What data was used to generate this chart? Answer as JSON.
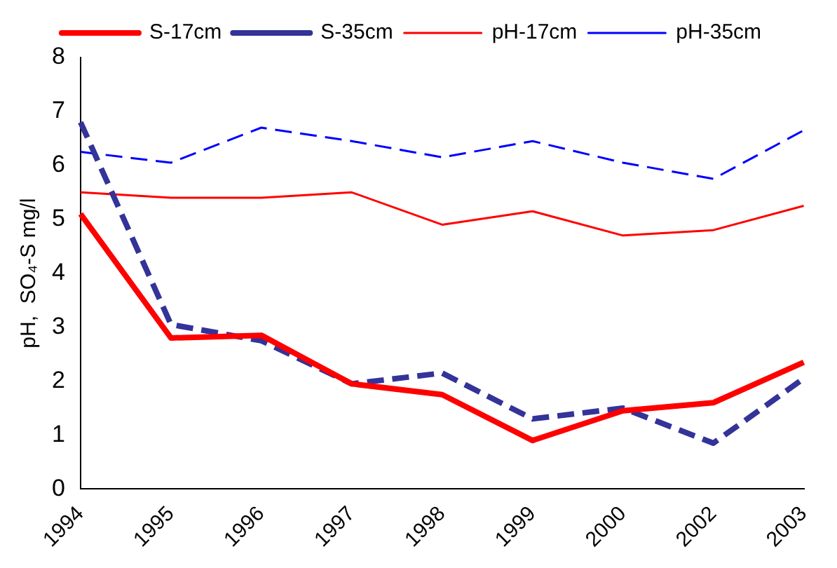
{
  "chart_data": {
    "type": "line",
    "ylabel": "pH,  SO₄-S mg/l",
    "categories": [
      "1994",
      "1995",
      "1996",
      "1997",
      "1998",
      "1999",
      "2000",
      "2002",
      "2003"
    ],
    "series": [
      {
        "name": "S-17cm",
        "color": "#ff0000",
        "line_style": "solid",
        "values": [
          5.1,
          2.8,
          2.85,
          1.95,
          1.75,
          0.9,
          1.45,
          1.6,
          2.35
        ]
      },
      {
        "name": "S-35cm",
        "color": "#333399",
        "line_style": "dashed",
        "values": [
          6.8,
          3.05,
          2.75,
          1.95,
          2.15,
          1.3,
          1.5,
          0.85,
          2.05
        ]
      },
      {
        "name": "pH-17cm",
        "color": "#ff0000",
        "line_style": "solid",
        "values": [
          5.5,
          5.4,
          5.4,
          5.5,
          4.9,
          5.15,
          4.7,
          4.8,
          5.25
        ]
      },
      {
        "name": "pH-35cm",
        "color": "#0000ff",
        "line_style": "dashed",
        "values": [
          6.25,
          6.05,
          6.7,
          6.45,
          6.15,
          6.45,
          6.05,
          5.75,
          6.65
        ]
      }
    ],
    "ylim": [
      0,
      8
    ],
    "yticks": [
      0,
      1,
      2,
      3,
      4,
      5,
      6,
      7,
      8
    ],
    "grid": false,
    "legend": "top",
    "marker": "none"
  }
}
